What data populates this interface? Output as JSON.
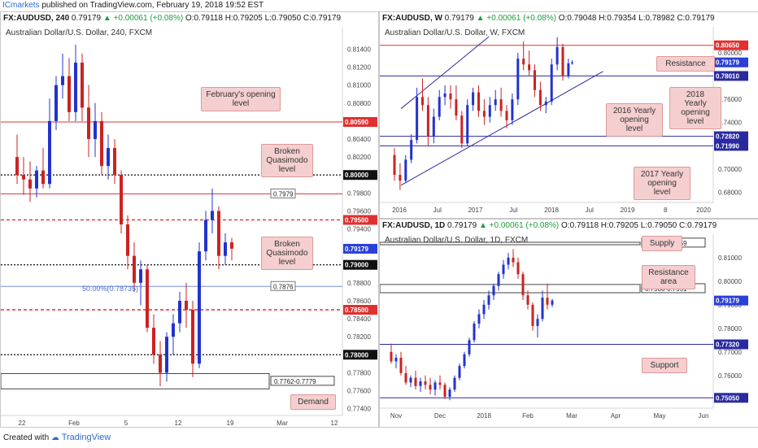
{
  "topbar": {
    "brand": "ICmarkets",
    "rest": "published on TradingView.com, February 19, 2018 19:52 EST"
  },
  "footer": {
    "created": "Created with",
    "tv": "TradingView"
  },
  "panels": [
    {
      "header": {
        "symbol": "FX:AUDUSD, 240",
        "open_price": "0.79179",
        "change": "+0.00061 (+0.08%)",
        "O": "0.79118",
        "H": "0.79205",
        "L": "0.79050",
        "C": "0.79179"
      },
      "subtitle": "Australian Dollar/U.S. Dollar, 240, FXCM"
    },
    {
      "header": {
        "symbol": "FX:AUDUSD, W",
        "open_price": "0.79179",
        "change": "+0.00061 (+0.08%)",
        "O": "0.79048",
        "H": "0.79354",
        "L": "0.78982",
        "C": "0.79179"
      },
      "subtitle": "Australian Dollar/U.S. Dollar, W, FXCM"
    },
    {
      "header": {
        "symbol": "FX:AUDUSD, 1D",
        "open_price": "0.79179",
        "change": "+0.00061 (+0.08%)",
        "O": "0.79118",
        "H": "0.79205",
        "L": "0.79050",
        "C": "0.79179"
      },
      "subtitle": "Australian Dollar/U.S. Dollar, 1D, FXCM"
    }
  ],
  "colors": {
    "bull": "#2233cc",
    "bear": "#cc2222",
    "red_line": "#e03030",
    "blue_line": "#2a2aa0",
    "note_bg": "#f5cfcf"
  },
  "chart_data": [
    {
      "type": "candlestick",
      "title": "Australian Dollar/U.S. Dollar, 240, FXCM",
      "ylim": [
        0.7736,
        0.8154
      ],
      "y_ticks": [
        "0.81400",
        "0.81200",
        "0.81000",
        "0.80800",
        "0.80600",
        "0.80400",
        "0.80200",
        "0.79800",
        "0.79600",
        "0.79400",
        "0.79200",
        "0.79000",
        "0.78800",
        "0.78600",
        "0.78400",
        "0.78200",
        "0.77800",
        "0.77600",
        "0.77400"
      ],
      "x_ticks": [
        "22",
        "Feb",
        "5",
        "12",
        "19",
        "Mar",
        "12"
      ],
      "levels": [
        {
          "value": 0.8059,
          "label": "0.80590",
          "style": "solid",
          "color": "#e03030"
        },
        {
          "value": 0.8,
          "label": "0.80000",
          "style": "dotted",
          "color": "#222222"
        },
        {
          "value": 0.7979,
          "label": "0.7979",
          "style": "solid",
          "color": "#e03030"
        },
        {
          "value": 0.795,
          "label": "0.79500",
          "style": "dashed",
          "color": "#e03030"
        },
        {
          "value": 0.79,
          "label": "0.79000",
          "style": "dotted",
          "color": "#222222"
        },
        {
          "value": 0.7876,
          "label": "0.7876",
          "style": "solid",
          "color": "#7a8bd8"
        },
        {
          "value": 0.785,
          "label": "0.78500",
          "style": "dashed",
          "color": "#e03030"
        },
        {
          "value": 0.78,
          "label": "0.78000",
          "style": "dotted",
          "color": "#222222"
        }
      ],
      "zone": {
        "from": 0.7762,
        "to": 0.7779,
        "label": "0.7762-0.7779"
      },
      "fib_label": "50.00%(0.78735)",
      "last_price": "0.79179",
      "annotations": [
        "February's opening level",
        "Broken Quasimodo level",
        "Broken Quasimodo level",
        "Demand"
      ],
      "series": [
        {
          "x": 0,
          "o": 0.802,
          "h": 0.8045,
          "l": 0.799,
          "c": 0.8
        },
        {
          "x": 8,
          "o": 0.8,
          "h": 0.802,
          "l": 0.7978,
          "c": 0.7995
        },
        {
          "x": 16,
          "o": 0.7995,
          "h": 0.8015,
          "l": 0.797,
          "c": 0.7985
        },
        {
          "x": 24,
          "o": 0.7985,
          "h": 0.801,
          "l": 0.7975,
          "c": 0.8005
        },
        {
          "x": 32,
          "o": 0.8005,
          "h": 0.803,
          "l": 0.7985,
          "c": 0.799
        },
        {
          "x": 40,
          "o": 0.799,
          "h": 0.8085,
          "l": 0.7985,
          "c": 0.806
        },
        {
          "x": 48,
          "o": 0.806,
          "h": 0.811,
          "l": 0.805,
          "c": 0.81
        },
        {
          "x": 56,
          "o": 0.81,
          "h": 0.8135,
          "l": 0.8085,
          "c": 0.811
        },
        {
          "x": 64,
          "o": 0.811,
          "h": 0.813,
          "l": 0.806,
          "c": 0.807
        },
        {
          "x": 72,
          "o": 0.807,
          "h": 0.8145,
          "l": 0.806,
          "c": 0.8125
        },
        {
          "x": 80,
          "o": 0.8125,
          "h": 0.8135,
          "l": 0.806,
          "c": 0.8075
        },
        {
          "x": 88,
          "o": 0.8075,
          "h": 0.81,
          "l": 0.802,
          "c": 0.804
        },
        {
          "x": 96,
          "o": 0.804,
          "h": 0.808,
          "l": 0.802,
          "c": 0.806
        },
        {
          "x": 104,
          "o": 0.806,
          "h": 0.807,
          "l": 0.8,
          "c": 0.801
        },
        {
          "x": 112,
          "o": 0.801,
          "h": 0.8045,
          "l": 0.7995,
          "c": 0.803
        },
        {
          "x": 120,
          "o": 0.803,
          "h": 0.804,
          "l": 0.799,
          "c": 0.8
        },
        {
          "x": 128,
          "o": 0.8,
          "h": 0.8005,
          "l": 0.7935,
          "c": 0.7945
        },
        {
          "x": 136,
          "o": 0.7945,
          "h": 0.7955,
          "l": 0.7895,
          "c": 0.791
        },
        {
          "x": 144,
          "o": 0.791,
          "h": 0.7925,
          "l": 0.787,
          "c": 0.788
        },
        {
          "x": 152,
          "o": 0.788,
          "h": 0.7905,
          "l": 0.7855,
          "c": 0.7895
        },
        {
          "x": 160,
          "o": 0.7895,
          "h": 0.79,
          "l": 0.7825,
          "c": 0.783
        },
        {
          "x": 168,
          "o": 0.783,
          "h": 0.7845,
          "l": 0.779,
          "c": 0.78
        },
        {
          "x": 176,
          "o": 0.78,
          "h": 0.7815,
          "l": 0.7765,
          "c": 0.778
        },
        {
          "x": 184,
          "o": 0.778,
          "h": 0.7825,
          "l": 0.777,
          "c": 0.782
        },
        {
          "x": 192,
          "o": 0.782,
          "h": 0.7845,
          "l": 0.78,
          "c": 0.7835
        },
        {
          "x": 200,
          "o": 0.7835,
          "h": 0.787,
          "l": 0.7825,
          "c": 0.786
        },
        {
          "x": 208,
          "o": 0.786,
          "h": 0.788,
          "l": 0.783,
          "c": 0.785
        },
        {
          "x": 216,
          "o": 0.785,
          "h": 0.786,
          "l": 0.7775,
          "c": 0.779
        },
        {
          "x": 224,
          "o": 0.779,
          "h": 0.7925,
          "l": 0.7785,
          "c": 0.7915
        },
        {
          "x": 232,
          "o": 0.7915,
          "h": 0.796,
          "l": 0.7905,
          "c": 0.795
        },
        {
          "x": 240,
          "o": 0.795,
          "h": 0.7985,
          "l": 0.7935,
          "c": 0.796
        },
        {
          "x": 248,
          "o": 0.796,
          "h": 0.7965,
          "l": 0.7895,
          "c": 0.791
        },
        {
          "x": 256,
          "o": 0.791,
          "h": 0.7935,
          "l": 0.79,
          "c": 0.7925
        },
        {
          "x": 264,
          "o": 0.7925,
          "h": 0.793,
          "l": 0.7905,
          "c": 0.7918
        }
      ]
    },
    {
      "type": "candlestick",
      "title": "Australian Dollar/U.S. Dollar, W, FXCM",
      "ylim": [
        0.674,
        0.814
      ],
      "y_ticks": [
        "0.80000",
        "0.78000",
        "0.76000",
        "0.74000",
        "0.72000",
        "0.70000",
        "0.68000"
      ],
      "x_ticks": [
        "2016",
        "Jul",
        "2017",
        "Jul",
        "2018",
        "Jul",
        "2019",
        "8",
        "2020"
      ],
      "levels": [
        {
          "value": 0.8065,
          "label": "0.80650",
          "style": "solid",
          "color": "#e03030"
        },
        {
          "value": 0.7801,
          "label": "0.78010",
          "style": "solid",
          "color": "#2a2aa0"
        },
        {
          "value": 0.7282,
          "label": "0.72820",
          "style": "solid",
          "color": "#2a2aa0"
        },
        {
          "value": 0.7199,
          "label": "0.71990",
          "style": "solid",
          "color": "#2a2aa0"
        }
      ],
      "last_price": "0.79179",
      "annotations": [
        "Resistance",
        "2018 Yearly opening level",
        "2016 Yearly opening level",
        "2017 Yearly opening level"
      ],
      "series": [
        {
          "x": 0,
          "o": 0.712,
          "h": 0.718,
          "l": 0.69,
          "c": 0.695
        },
        {
          "x": 6,
          "o": 0.695,
          "h": 0.705,
          "l": 0.682,
          "c": 0.69
        },
        {
          "x": 12,
          "o": 0.69,
          "h": 0.712,
          "l": 0.688,
          "c": 0.708
        },
        {
          "x": 18,
          "o": 0.708,
          "h": 0.73,
          "l": 0.705,
          "c": 0.725
        },
        {
          "x": 24,
          "o": 0.725,
          "h": 0.77,
          "l": 0.722,
          "c": 0.762
        },
        {
          "x": 30,
          "o": 0.762,
          "h": 0.778,
          "l": 0.75,
          "c": 0.755
        },
        {
          "x": 36,
          "o": 0.755,
          "h": 0.762,
          "l": 0.72,
          "c": 0.728
        },
        {
          "x": 42,
          "o": 0.728,
          "h": 0.752,
          "l": 0.722,
          "c": 0.745
        },
        {
          "x": 48,
          "o": 0.745,
          "h": 0.768,
          "l": 0.742,
          "c": 0.762
        },
        {
          "x": 54,
          "o": 0.762,
          "h": 0.772,
          "l": 0.755,
          "c": 0.765
        },
        {
          "x": 60,
          "o": 0.765,
          "h": 0.772,
          "l": 0.752,
          "c": 0.76
        },
        {
          "x": 66,
          "o": 0.76,
          "h": 0.772,
          "l": 0.742,
          "c": 0.746
        },
        {
          "x": 72,
          "o": 0.746,
          "h": 0.75,
          "l": 0.718,
          "c": 0.722
        },
        {
          "x": 78,
          "o": 0.722,
          "h": 0.76,
          "l": 0.72,
          "c": 0.755
        },
        {
          "x": 84,
          "o": 0.755,
          "h": 0.77,
          "l": 0.75,
          "c": 0.766
        },
        {
          "x": 90,
          "o": 0.766,
          "h": 0.772,
          "l": 0.745,
          "c": 0.75
        },
        {
          "x": 96,
          "o": 0.75,
          "h": 0.76,
          "l": 0.738,
          "c": 0.745
        },
        {
          "x": 102,
          "o": 0.745,
          "h": 0.762,
          "l": 0.74,
          "c": 0.755
        },
        {
          "x": 108,
          "o": 0.755,
          "h": 0.768,
          "l": 0.75,
          "c": 0.76
        },
        {
          "x": 114,
          "o": 0.76,
          "h": 0.77,
          "l": 0.745,
          "c": 0.75
        },
        {
          "x": 120,
          "o": 0.75,
          "h": 0.755,
          "l": 0.735,
          "c": 0.742
        },
        {
          "x": 126,
          "o": 0.742,
          "h": 0.765,
          "l": 0.738,
          "c": 0.76
        },
        {
          "x": 132,
          "o": 0.76,
          "h": 0.8,
          "l": 0.755,
          "c": 0.795
        },
        {
          "x": 138,
          "o": 0.795,
          "h": 0.81,
          "l": 0.785,
          "c": 0.79
        },
        {
          "x": 144,
          "o": 0.79,
          "h": 0.802,
          "l": 0.78,
          "c": 0.785
        },
        {
          "x": 150,
          "o": 0.785,
          "h": 0.79,
          "l": 0.762,
          "c": 0.768
        },
        {
          "x": 156,
          "o": 0.768,
          "h": 0.775,
          "l": 0.75,
          "c": 0.755
        },
        {
          "x": 162,
          "o": 0.755,
          "h": 0.762,
          "l": 0.748,
          "c": 0.758
        },
        {
          "x": 168,
          "o": 0.758,
          "h": 0.795,
          "l": 0.755,
          "c": 0.79
        },
        {
          "x": 174,
          "o": 0.79,
          "h": 0.8135,
          "l": 0.785,
          "c": 0.805
        },
        {
          "x": 180,
          "o": 0.805,
          "h": 0.808,
          "l": 0.776,
          "c": 0.78
        },
        {
          "x": 186,
          "o": 0.78,
          "h": 0.795,
          "l": 0.778,
          "c": 0.791
        },
        {
          "x": 190,
          "o": 0.791,
          "h": 0.7935,
          "l": 0.7898,
          "c": 0.7918
        }
      ],
      "channel": {
        "lower": [
          [
            14,
            0.686
          ],
          [
            230,
            0.784
          ]
        ],
        "upper": [
          [
            14,
            0.752
          ],
          [
            108,
            0.814
          ]
        ]
      }
    },
    {
      "type": "candlestick",
      "title": "Australian Dollar/U.S. Dollar, 1D, FXCM",
      "ylim": [
        0.7475,
        0.8165
      ],
      "y_ticks": [
        "0.81000",
        "0.80000",
        "0.79000",
        "0.78000",
        "0.77000",
        "0.76000",
        "0.75000"
      ],
      "x_ticks": [
        "Nov",
        "Dec",
        "2018",
        "Feb",
        "Mar",
        "Apr",
        "May",
        "Jun"
      ],
      "levels": [
        {
          "value": 0.7732,
          "label": "0.77320",
          "style": "solid",
          "color": "#2a2aa0"
        },
        {
          "value": 0.7505,
          "label": "0.75050",
          "style": "solid",
          "color": "#2a2aa0"
        }
      ],
      "zones": [
        {
          "from": 0.8159,
          "to": 0.8233,
          "label": "0.8233-0.8159"
        },
        {
          "from": 0.7951,
          "to": 0.7986,
          "label": "0.7986-0.7951"
        }
      ],
      "last_price": "0.79179",
      "annotations": [
        "Supply",
        "Resistance area",
        "Support"
      ],
      "series": [
        {
          "x": 0,
          "o": 0.77,
          "h": 0.7735,
          "l": 0.765,
          "c": 0.766
        },
        {
          "x": 6,
          "o": 0.766,
          "h": 0.769,
          "l": 0.763,
          "c": 0.7675
        },
        {
          "x": 12,
          "o": 0.7675,
          "h": 0.77,
          "l": 0.76,
          "c": 0.761
        },
        {
          "x": 18,
          "o": 0.761,
          "h": 0.764,
          "l": 0.756,
          "c": 0.757
        },
        {
          "x": 24,
          "o": 0.757,
          "h": 0.76,
          "l": 0.755,
          "c": 0.759
        },
        {
          "x": 30,
          "o": 0.759,
          "h": 0.762,
          "l": 0.754,
          "c": 0.7555
        },
        {
          "x": 36,
          "o": 0.7555,
          "h": 0.759,
          "l": 0.753,
          "c": 0.7575
        },
        {
          "x": 42,
          "o": 0.7575,
          "h": 0.76,
          "l": 0.754,
          "c": 0.756
        },
        {
          "x": 48,
          "o": 0.756,
          "h": 0.759,
          "l": 0.752,
          "c": 0.754
        },
        {
          "x": 54,
          "o": 0.754,
          "h": 0.758,
          "l": 0.7515,
          "c": 0.757
        },
        {
          "x": 60,
          "o": 0.757,
          "h": 0.76,
          "l": 0.754,
          "c": 0.756
        },
        {
          "x": 66,
          "o": 0.756,
          "h": 0.757,
          "l": 0.75,
          "c": 0.751
        },
        {
          "x": 72,
          "o": 0.751,
          "h": 0.755,
          "l": 0.7495,
          "c": 0.754
        },
        {
          "x": 78,
          "o": 0.754,
          "h": 0.76,
          "l": 0.753,
          "c": 0.759
        },
        {
          "x": 84,
          "o": 0.759,
          "h": 0.765,
          "l": 0.758,
          "c": 0.764
        },
        {
          "x": 90,
          "o": 0.764,
          "h": 0.77,
          "l": 0.763,
          "c": 0.769
        },
        {
          "x": 96,
          "o": 0.769,
          "h": 0.776,
          "l": 0.768,
          "c": 0.775
        },
        {
          "x": 102,
          "o": 0.775,
          "h": 0.783,
          "l": 0.774,
          "c": 0.782
        },
        {
          "x": 108,
          "o": 0.782,
          "h": 0.788,
          "l": 0.78,
          "c": 0.786
        },
        {
          "x": 114,
          "o": 0.786,
          "h": 0.792,
          "l": 0.784,
          "c": 0.79
        },
        {
          "x": 120,
          "o": 0.79,
          "h": 0.796,
          "l": 0.788,
          "c": 0.794
        },
        {
          "x": 126,
          "o": 0.794,
          "h": 0.799,
          "l": 0.792,
          "c": 0.798
        },
        {
          "x": 132,
          "o": 0.798,
          "h": 0.804,
          "l": 0.796,
          "c": 0.803
        },
        {
          "x": 138,
          "o": 0.803,
          "h": 0.809,
          "l": 0.801,
          "c": 0.807
        },
        {
          "x": 144,
          "o": 0.807,
          "h": 0.812,
          "l": 0.805,
          "c": 0.81
        },
        {
          "x": 150,
          "o": 0.81,
          "h": 0.8136,
          "l": 0.806,
          "c": 0.808
        },
        {
          "x": 156,
          "o": 0.808,
          "h": 0.81,
          "l": 0.801,
          "c": 0.803
        },
        {
          "x": 162,
          "o": 0.803,
          "h": 0.804,
          "l": 0.792,
          "c": 0.794
        },
        {
          "x": 168,
          "o": 0.794,
          "h": 0.796,
          "l": 0.788,
          "c": 0.79
        },
        {
          "x": 174,
          "o": 0.79,
          "h": 0.791,
          "l": 0.779,
          "c": 0.781
        },
        {
          "x": 180,
          "o": 0.781,
          "h": 0.786,
          "l": 0.776,
          "c": 0.784
        },
        {
          "x": 186,
          "o": 0.784,
          "h": 0.796,
          "l": 0.783,
          "c": 0.793
        },
        {
          "x": 192,
          "o": 0.793,
          "h": 0.799,
          "l": 0.788,
          "c": 0.79
        },
        {
          "x": 198,
          "o": 0.79,
          "h": 0.7925,
          "l": 0.789,
          "c": 0.7918
        }
      ]
    }
  ]
}
